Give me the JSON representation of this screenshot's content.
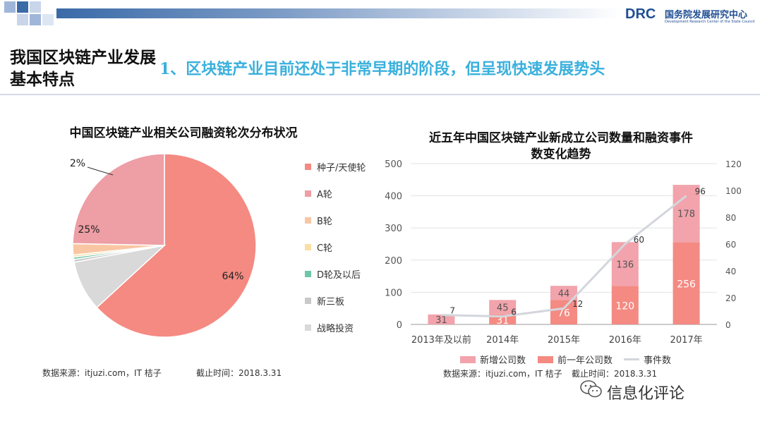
{
  "header": {
    "logo_abbr": "DRC",
    "logo_name": "国务院发展研究中心",
    "logo_english": "Development Research Center of the State Council",
    "brand_color": "#1f4e93"
  },
  "section_title": "我国区块链产业发展基本特点",
  "headline": "1、区块链产业目前还处于非常早期的阶段，但呈现快速发展势头",
  "pie_chart": {
    "title": "中国区块链产业相关公司融资轮次分布状况",
    "source": "数据来源：itjuzi.com，IT 桔子",
    "cutoff": "截止时间：2018.3.31"
  },
  "bar_chart": {
    "title_line1": "近五年中国区块链产业新成立公司数量和融资事件",
    "title_line2": "数变化趋势",
    "source": "数据来源：itjuzi.com，IT 桔子",
    "cutoff": "截止时间：2018.3.31"
  },
  "watermark": {
    "label": "信息化评论",
    "icon": "wechat-icon"
  },
  "chart_data": [
    {
      "type": "pie",
      "title": "中国区块链产业相关公司融资轮次分布状况",
      "slices": [
        {
          "label": "种子/天使轮",
          "value": 64,
          "display": "64%",
          "color": "#f48a82"
        },
        {
          "label": "战略投资",
          "value": 9,
          "display": "9%",
          "color": "#d9d9d9"
        },
        {
          "label": "新三板",
          "value": 0.5,
          "display": "",
          "color": "#c9c9c9"
        },
        {
          "label": "D轮及以后",
          "value": 0.4,
          "display": "",
          "color": "#6cc6a8"
        },
        {
          "label": "C轮",
          "value": 0.4,
          "display": "",
          "color": "#f9dfa4"
        },
        {
          "label": "B轮",
          "value": 2,
          "display": "2%",
          "color": "#f9c6a4"
        },
        {
          "label": "A轮",
          "value": 25,
          "display": "25%",
          "color": "#ee9ea5"
        }
      ],
      "legend": [
        "种子/天使轮",
        "A轮",
        "B轮",
        "C轮",
        "D轮及以后",
        "新三板",
        "战略投资"
      ],
      "legend_colors": [
        "#f48a82",
        "#ee9ea5",
        "#f9c6a4",
        "#f9dfa4",
        "#6cc6a8",
        "#c9c9c9",
        "#d9d9d9"
      ],
      "legend_position": "right"
    },
    {
      "type": "bar",
      "stacked": true,
      "title": "近五年中国区块链产业新成立公司数量和融资事件数变化趋势",
      "categories": [
        "2013年及以前",
        "2014年",
        "2015年",
        "2016年",
        "2017年"
      ],
      "series": [
        {
          "name": "前一年公司数",
          "values": [
            0,
            31,
            76,
            120,
            256
          ],
          "labels": [
            "",
            "31",
            "76",
            "120",
            "256"
          ],
          "color": "#f48a82",
          "axis": "left"
        },
        {
          "name": "新增公司数",
          "values": [
            31,
            45,
            44,
            136,
            178
          ],
          "labels": [
            "31",
            "45",
            "44",
            "136",
            "178"
          ],
          "color": "#f2a3ab",
          "axis": "left"
        },
        {
          "name": "事件数",
          "type": "line",
          "values": [
            7,
            6,
            12,
            60,
            96
          ],
          "labels": [
            "7",
            "6",
            "12",
            "60",
            "96"
          ],
          "color": "#d3d6dc",
          "axis": "right"
        }
      ],
      "ylim": [
        0,
        500
      ],
      "yticks": [
        0,
        100,
        200,
        300,
        400,
        500
      ],
      "y2lim": [
        0,
        120
      ],
      "y2ticks": [
        0,
        20,
        40,
        60,
        80,
        100,
        120
      ],
      "legend": [
        "新增公司数",
        "前一年公司数",
        "事件数"
      ],
      "legend_position": "bottom",
      "grid": true
    }
  ]
}
